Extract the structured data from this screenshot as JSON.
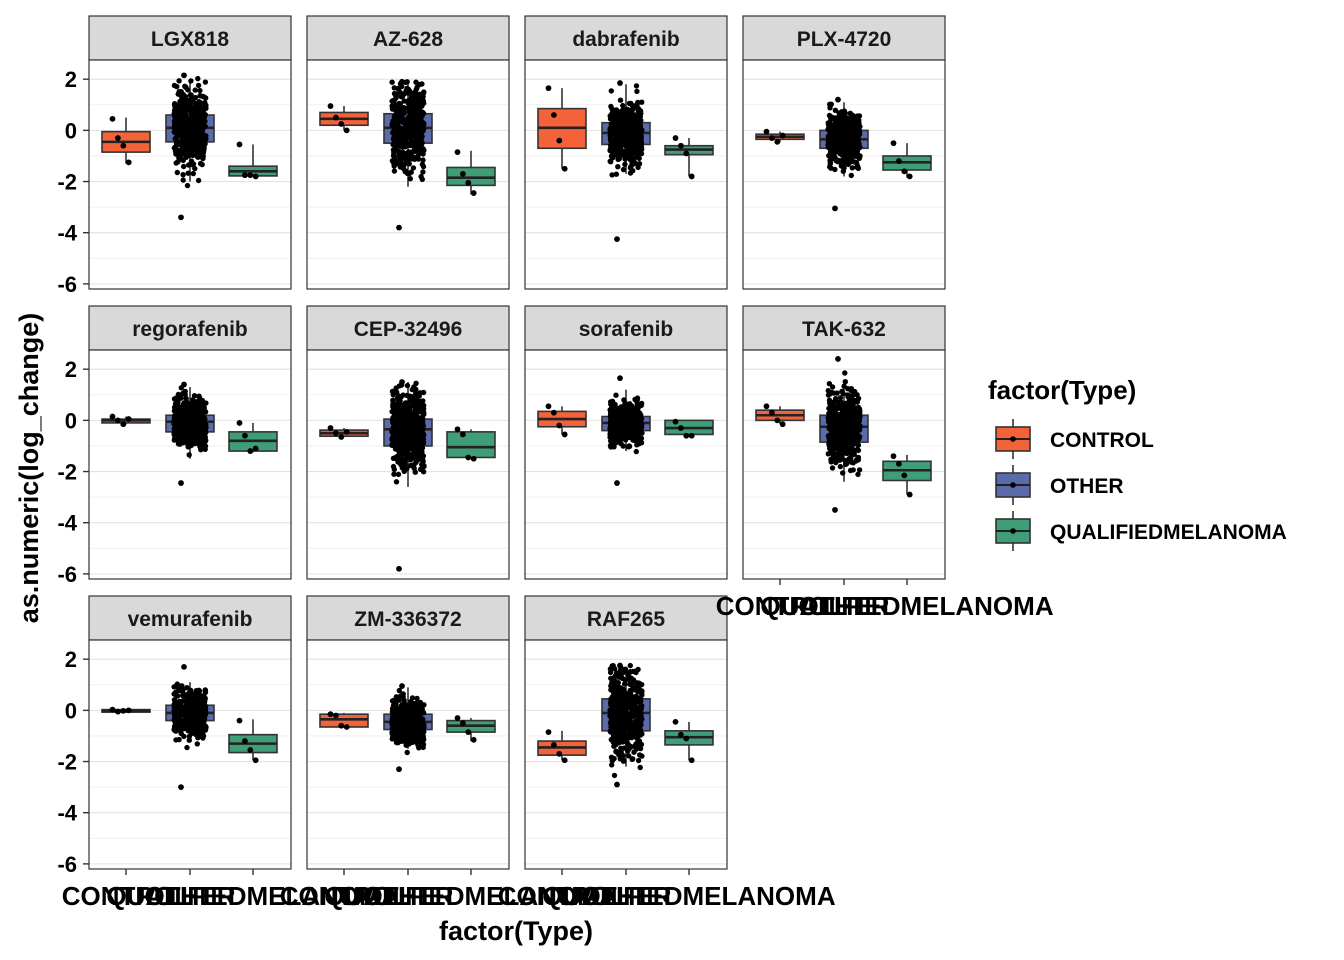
{
  "chart_data": {
    "type": "boxplot",
    "facet_by": "drug",
    "xlabel": "factor(Type)",
    "ylabel": "as.numeric(log_change)",
    "categories": [
      "CONTROL",
      "OTHER",
      "QUALIFIEDMELANOMA"
    ],
    "ylim": [
      -6.2,
      2.75
    ],
    "yticks": [
      2,
      0,
      -2,
      -4,
      -6
    ],
    "grid": true,
    "legend": {
      "title": "factor(Type)",
      "position": "right",
      "entries": [
        {
          "label": "CONTROL",
          "color": "#F4623A"
        },
        {
          "label": "OTHER",
          "color": "#5B6AAB"
        },
        {
          "label": "QUALIFIEDMELANOMA",
          "color": "#3F9E78"
        }
      ]
    },
    "panels": [
      {
        "title": "LGX818",
        "boxes": [
          {
            "category": "CONTROL",
            "q1": -0.85,
            "median": -0.45,
            "q3": -0.05,
            "min": -1.3,
            "max": 0.5,
            "points": [
              0.45,
              -0.3,
              -0.6,
              -1.25
            ]
          },
          {
            "category": "OTHER",
            "q1": -0.45,
            "median": 0.1,
            "q3": 0.6,
            "min": -2.0,
            "max": 2.0,
            "outlier_min": -3.4,
            "outlier_max": 2.15,
            "n": 420
          },
          {
            "category": "QUALIFIEDMELANOMA",
            "q1": -1.78,
            "median": -1.6,
            "q3": -1.4,
            "min": -1.8,
            "max": -0.55,
            "points": [
              -0.55,
              -1.75,
              -1.75,
              -1.8
            ]
          }
        ]
      },
      {
        "title": "AZ-628",
        "boxes": [
          {
            "category": "CONTROL",
            "q1": 0.2,
            "median": 0.45,
            "q3": 0.7,
            "min": 0.0,
            "max": 0.95,
            "points": [
              0.95,
              0.5,
              0.25,
              0.0
            ]
          },
          {
            "category": "OTHER",
            "q1": -0.5,
            "median": 0.1,
            "q3": 0.65,
            "min": -2.2,
            "max": 1.9,
            "outlier_min": -3.8,
            "outlier_max": 1.9,
            "n": 420
          },
          {
            "category": "QUALIFIEDMELANOMA",
            "q1": -2.15,
            "median": -1.85,
            "q3": -1.45,
            "min": -2.5,
            "max": -0.8,
            "points": [
              -0.85,
              -1.7,
              -2.05,
              -2.45
            ]
          }
        ]
      },
      {
        "title": "dabrafenib",
        "boxes": [
          {
            "category": "CONTROL",
            "q1": -0.7,
            "median": 0.1,
            "q3": 0.85,
            "min": -1.5,
            "max": 1.65,
            "points": [
              1.65,
              0.6,
              -0.4,
              -1.5
            ]
          },
          {
            "category": "OTHER",
            "q1": -0.55,
            "median": -0.1,
            "q3": 0.3,
            "min": -1.7,
            "max": 1.8,
            "outlier_min": -4.25,
            "outlier_max": 1.85,
            "n": 420
          },
          {
            "category": "QUALIFIEDMELANOMA",
            "q1": -0.95,
            "median": -0.75,
            "q3": -0.6,
            "min": -1.8,
            "max": -0.3,
            "points": [
              -0.3,
              -0.6,
              -0.9,
              -1.8
            ]
          }
        ]
      },
      {
        "title": "PLX-4720",
        "boxes": [
          {
            "category": "CONTROL",
            "q1": -0.35,
            "median": -0.25,
            "q3": -0.15,
            "min": -0.45,
            "max": -0.05,
            "points": [
              -0.05,
              -0.3,
              -0.45,
              -0.2
            ]
          },
          {
            "category": "OTHER",
            "q1": -0.7,
            "median": -0.35,
            "q3": 0.0,
            "min": -1.8,
            "max": 1.1,
            "outlier_min": -3.05,
            "outlier_max": 1.2,
            "n": 420
          },
          {
            "category": "QUALIFIEDMELANOMA",
            "q1": -1.55,
            "median": -1.25,
            "q3": -1.0,
            "min": -1.85,
            "max": -0.5,
            "points": [
              -0.5,
              -1.2,
              -1.6,
              -1.8
            ]
          }
        ]
      },
      {
        "title": "regorafenib",
        "boxes": [
          {
            "category": "CONTROL",
            "q1": -0.1,
            "median": 0.0,
            "q3": 0.05,
            "min": -0.15,
            "max": 0.15,
            "points": [
              0.15,
              0.0,
              -0.15,
              0.05
            ]
          },
          {
            "category": "OTHER",
            "q1": -0.45,
            "median": -0.05,
            "q3": 0.2,
            "min": -1.5,
            "max": 1.3,
            "outlier_min": -2.45,
            "outlier_max": 1.4,
            "n": 420
          },
          {
            "category": "QUALIFIEDMELANOMA",
            "q1": -1.2,
            "median": -0.8,
            "q3": -0.45,
            "min": -1.25,
            "max": -0.1,
            "points": [
              -0.1,
              -0.6,
              -1.2,
              -1.1
            ]
          }
        ]
      },
      {
        "title": "CEP-32496",
        "boxes": [
          {
            "category": "CONTROL",
            "q1": -0.62,
            "median": -0.5,
            "q3": -0.38,
            "min": -0.65,
            "max": -0.3,
            "points": [
              -0.3,
              -0.5,
              -0.65,
              -0.45
            ]
          },
          {
            "category": "OTHER",
            "q1": -1.0,
            "median": -0.35,
            "q3": 0.05,
            "min": -2.6,
            "max": 1.5,
            "outlier_min": -5.8,
            "outlier_max": 1.5,
            "n": 420
          },
          {
            "category": "QUALIFIEDMELANOMA",
            "q1": -1.45,
            "median": -1.05,
            "q3": -0.45,
            "min": -1.5,
            "max": -0.35,
            "points": [
              -0.35,
              -0.55,
              -1.45,
              -1.5
            ]
          }
        ]
      },
      {
        "title": "sorafenib",
        "boxes": [
          {
            "category": "CONTROL",
            "q1": -0.25,
            "median": 0.05,
            "q3": 0.35,
            "min": -0.55,
            "max": 0.55,
            "points": [
              0.55,
              0.3,
              -0.2,
              -0.55
            ]
          },
          {
            "category": "OTHER",
            "q1": -0.4,
            "median": -0.1,
            "q3": 0.15,
            "min": -1.2,
            "max": 1.2,
            "outlier_min": -2.45,
            "outlier_max": 1.65,
            "n": 420
          },
          {
            "category": "QUALIFIEDMELANOMA",
            "q1": -0.55,
            "median": -0.3,
            "q3": 0.0,
            "min": -0.65,
            "max": 0.0,
            "points": [
              -0.05,
              -0.3,
              -0.6,
              -0.6
            ]
          }
        ]
      },
      {
        "title": "TAK-632",
        "boxes": [
          {
            "category": "CONTROL",
            "q1": 0.0,
            "median": 0.2,
            "q3": 0.4,
            "min": -0.15,
            "max": 0.55,
            "points": [
              0.55,
              0.3,
              0.0,
              -0.15
            ]
          },
          {
            "category": "OTHER",
            "q1": -0.85,
            "median": -0.25,
            "q3": 0.2,
            "min": -2.4,
            "max": 1.55,
            "outlier_min": -3.5,
            "outlier_max": 2.4,
            "n": 420
          },
          {
            "category": "QUALIFIEDMELANOMA",
            "q1": -2.35,
            "median": -1.95,
            "q3": -1.6,
            "min": -2.9,
            "max": -1.35,
            "points": [
              -1.4,
              -1.7,
              -2.15,
              -2.9
            ]
          }
        ]
      },
      {
        "title": "vemurafenib",
        "boxes": [
          {
            "category": "CONTROL",
            "q1": -0.07,
            "median": -0.02,
            "q3": 0.03,
            "min": -0.1,
            "max": 0.05,
            "points": [
              0.03,
              -0.05,
              -0.02,
              0.0
            ]
          },
          {
            "category": "OTHER",
            "q1": -0.4,
            "median": -0.1,
            "q3": 0.2,
            "min": -1.0,
            "max": 1.1,
            "outlier_min": -3.0,
            "outlier_max": 1.7,
            "n": 420
          },
          {
            "category": "QUALIFIEDMELANOMA",
            "q1": -1.65,
            "median": -1.3,
            "q3": -0.95,
            "min": -1.95,
            "max": -0.35,
            "points": [
              -0.4,
              -1.2,
              -1.55,
              -1.95
            ]
          }
        ]
      },
      {
        "title": "ZM-336372",
        "boxes": [
          {
            "category": "CONTROL",
            "q1": -0.65,
            "median": -0.35,
            "q3": -0.15,
            "min": -0.65,
            "max": -0.1,
            "points": [
              -0.15,
              -0.2,
              -0.6,
              -0.65
            ]
          },
          {
            "category": "OTHER",
            "q1": -0.75,
            "median": -0.45,
            "q3": -0.15,
            "min": -1.5,
            "max": 0.9,
            "outlier_min": -2.3,
            "outlier_max": 0.95,
            "n": 420
          },
          {
            "category": "QUALIFIEDMELANOMA",
            "q1": -0.85,
            "median": -0.6,
            "q3": -0.4,
            "min": -1.2,
            "max": -0.3,
            "points": [
              -0.3,
              -0.5,
              -0.85,
              -1.15
            ]
          }
        ]
      },
      {
        "title": "RAF265",
        "boxes": [
          {
            "category": "CONTROL",
            "q1": -1.75,
            "median": -1.45,
            "q3": -1.2,
            "min": -1.95,
            "max": -0.8,
            "points": [
              -0.85,
              -1.35,
              -1.7,
              -1.95
            ]
          },
          {
            "category": "OTHER",
            "q1": -0.8,
            "median": -0.1,
            "q3": 0.45,
            "min": -2.2,
            "max": 1.6,
            "outlier_min": -2.9,
            "outlier_max": 1.75,
            "n": 420
          },
          {
            "category": "QUALIFIEDMELANOMA",
            "q1": -1.35,
            "median": -1.05,
            "q3": -0.8,
            "min": -1.95,
            "max": -0.45,
            "points": [
              -0.45,
              -0.95,
              -1.1,
              -1.95
            ]
          }
        ]
      }
    ]
  }
}
